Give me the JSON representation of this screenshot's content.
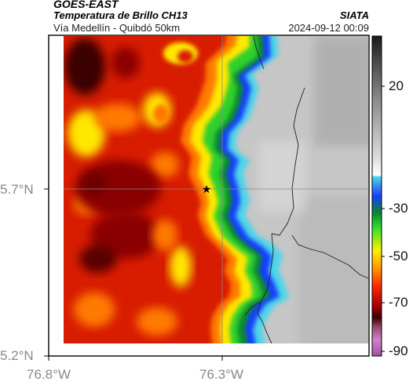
{
  "header": {
    "satellite": "GOES-EAST",
    "product": "Temperatura de Brillo CH13",
    "route": "Vía Medellín - Quibdó 50km",
    "agency": "SIATA",
    "datetime": "2024-09-12 00:09"
  },
  "axes": {
    "lat_labels": [
      "5.7°N",
      "5.2°N"
    ],
    "lon_labels": [
      "76.8°W",
      "76.3°W"
    ]
  },
  "colorbar": {
    "ticks": [
      "20",
      "-30",
      "-50",
      "-70",
      "-90"
    ],
    "stops": [
      "#1a1a1a",
      "#4a4a4a",
      "#8c8c8c",
      "#c8c8c8",
      "#ffffff",
      "#4fd6e8",
      "#1a3cff",
      "#0a8a2a",
      "#30e030",
      "#fff000",
      "#ff9000",
      "#ff2a00",
      "#b00000",
      "#3a0000",
      "#9a4a6a",
      "#d080d0",
      "#a050a0"
    ]
  },
  "map": {
    "marker": "route-point-star",
    "colors": {
      "cold_core": "#7a0000",
      "cloud_red": "#d81a00",
      "cloud_orange": "#ff7a00",
      "cloud_yellow": "#ffe800",
      "cloud_green": "#2fd02f",
      "cloud_blue": "#123cff",
      "cloud_cyan": "#4fd6e8",
      "clear_gray": "#c9c9c9"
    }
  }
}
